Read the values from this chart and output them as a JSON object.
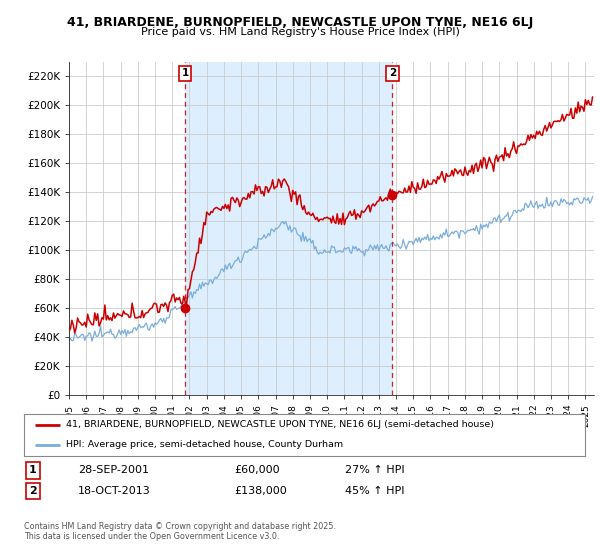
{
  "title_line1": "41, BRIARDENE, BURNOPFIELD, NEWCASTLE UPON TYNE, NE16 6LJ",
  "title_line2": "Price paid vs. HM Land Registry's House Price Index (HPI)",
  "ylim": [
    0,
    230000
  ],
  "yticks": [
    0,
    20000,
    40000,
    60000,
    80000,
    100000,
    120000,
    140000,
    160000,
    180000,
    200000,
    220000
  ],
  "sale1_date_num": 2001.75,
  "sale1_price": 60000,
  "sale1_label": "28-SEP-2001",
  "sale1_pct": "27%",
  "sale2_date_num": 2013.79,
  "sale2_price": 138000,
  "sale2_label": "18-OCT-2013",
  "sale2_pct": "45%",
  "legend_line1": "41, BRIARDENE, BURNOPFIELD, NEWCASTLE UPON TYNE, NE16 6LJ (semi-detached house)",
  "legend_line2": "HPI: Average price, semi-detached house, County Durham",
  "footnote": "Contains HM Land Registry data © Crown copyright and database right 2025.\nThis data is licensed under the Open Government Licence v3.0.",
  "property_color": "#cc0000",
  "hpi_color": "#7aaddb",
  "shading_color": "#ddeeff",
  "sale_line_color": "#cc0000",
  "background_color": "#ffffff",
  "grid_color": "#cccccc",
  "xmin": 1995.0,
  "xmax": 2025.5
}
